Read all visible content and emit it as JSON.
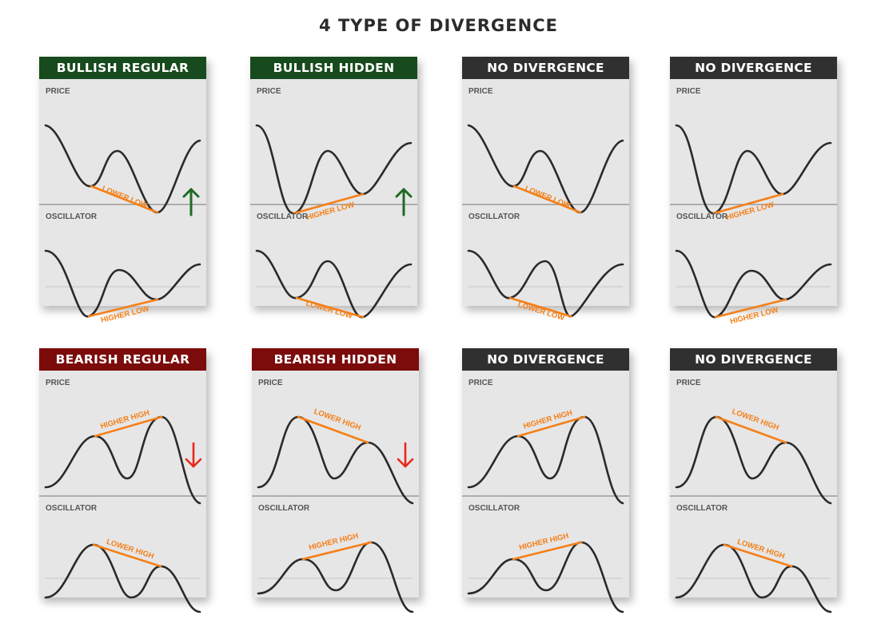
{
  "title": "4 TYPE OF DIVERGENCE",
  "panel_labels": {
    "price": "PRICE",
    "oscillator": "OSCILLATOR"
  },
  "colors": {
    "bullish_header": "#174a1c",
    "bearish_header": "#7c0c0c",
    "neutral_header": "#303030",
    "trend_line": "#f57f17",
    "curve": "#2a2a2a",
    "arrow_up": "#1e6a24",
    "arrow_down": "#e8281c",
    "card_background": "#e6e6e6"
  },
  "cards": [
    {
      "id": "bullish-regular",
      "title": "BULLISH REGULAR",
      "header_color": "bullish",
      "arrow": "up",
      "price_line_label": "LOWER LOW",
      "oscillator_line_label": "HIGHER LOW"
    },
    {
      "id": "bullish-hidden",
      "title": "BULLISH HIDDEN",
      "header_color": "bullish",
      "arrow": "up",
      "price_line_label": "HIGHER LOW",
      "oscillator_line_label": "LOWER LOW"
    },
    {
      "id": "no-divergence-top-1",
      "title": "NO DIVERGENCE",
      "header_color": "neutral",
      "arrow": "none",
      "price_line_label": "LOWER LOW",
      "oscillator_line_label": "LOWER LOW"
    },
    {
      "id": "no-divergence-top-2",
      "title": "NO DIVERGENCE",
      "header_color": "neutral",
      "arrow": "none",
      "price_line_label": "HIGHER LOW",
      "oscillator_line_label": "HIGHER LOW"
    },
    {
      "id": "bearish-regular",
      "title": "BEARISH REGULAR",
      "header_color": "bearish",
      "arrow": "down",
      "price_line_label": "HIGHER HIGH",
      "oscillator_line_label": "LOWER HIGH"
    },
    {
      "id": "bearish-hidden",
      "title": "BEARISH HIDDEN",
      "header_color": "bearish",
      "arrow": "down",
      "price_line_label": "LOWER HIGH",
      "oscillator_line_label": "HIGHER HIGH"
    },
    {
      "id": "no-divergence-bottom-1",
      "title": "NO DIVERGENCE",
      "header_color": "neutral",
      "arrow": "none",
      "price_line_label": "HIGHER HIGH",
      "oscillator_line_label": "HIGHER HIGH"
    },
    {
      "id": "no-divergence-bottom-2",
      "title": "NO DIVERGENCE",
      "header_color": "neutral",
      "arrow": "none",
      "price_line_label": "LOWER HIGH",
      "oscillator_line_label": "LOWER HIGH"
    }
  ]
}
